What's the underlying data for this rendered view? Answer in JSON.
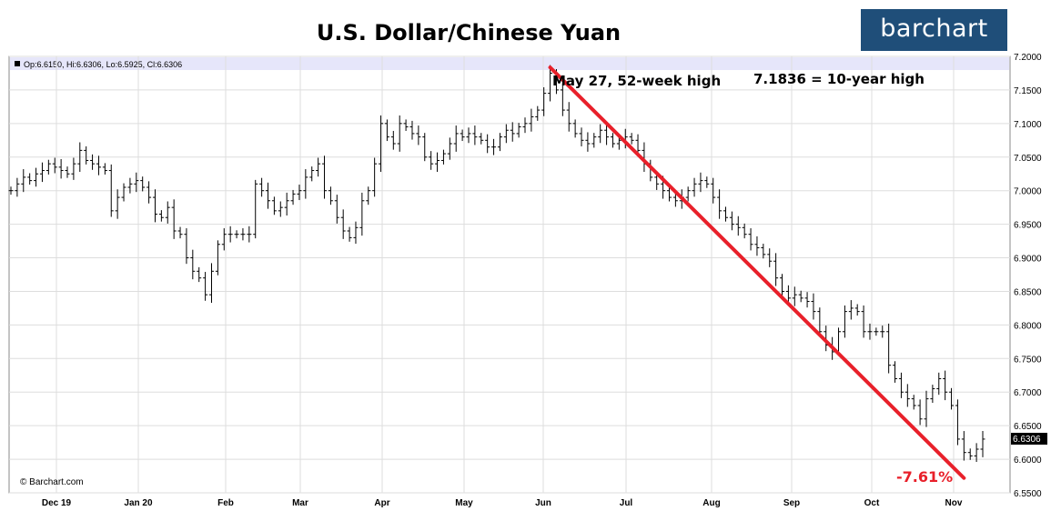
{
  "header": {
    "title": "U.S. Dollar/Chinese Yuan",
    "logo_text": "barchart",
    "brand_color": "#1f4e79"
  },
  "ohlc_summary": "Op:6.6150, Hi:6.6306, Lo:6.5925, Cl:6.6306",
  "copyright": "© Barchart.com",
  "annotations": {
    "high_label": "May 27, 52-week high",
    "ten_year_label": "7.1836 = 10-year high",
    "change_label": "-7.61%",
    "change_color": "#e8202a"
  },
  "last_price_label": "6.6306",
  "chart_data": {
    "type": "ohlc-bar",
    "title": "U.S. Dollar/Chinese Yuan",
    "xlabel": "",
    "ylabel": "",
    "ylim": [
      6.55,
      7.2
    ],
    "y_ticks": [
      "7.2000",
      "7.1500",
      "7.1000",
      "7.0500",
      "7.0000",
      "6.9500",
      "6.9000",
      "6.8500",
      "6.8000",
      "6.7500",
      "6.7000",
      "6.6500",
      "6.6000",
      "6.5500"
    ],
    "x_ticks": [
      "Dec 19",
      "Jan 20",
      "Feb",
      "Mar",
      "Apr",
      "May",
      "Jun",
      "Jul",
      "Aug",
      "Sep",
      "Oct",
      "Nov"
    ],
    "grid": true,
    "legend": "none",
    "series": [
      {
        "points": [
          [
            0,
            7.0
          ],
          [
            1,
            7.01
          ],
          [
            2,
            7.02
          ],
          [
            3,
            7.015
          ],
          [
            4,
            7.025
          ],
          [
            5,
            7.03
          ],
          [
            6,
            7.04
          ],
          [
            7,
            7.035
          ],
          [
            8,
            7.03
          ],
          [
            9,
            7.025
          ],
          [
            10,
            7.04
          ],
          [
            11,
            7.06
          ],
          [
            12,
            7.045
          ],
          [
            13,
            7.04
          ],
          [
            14,
            7.035
          ],
          [
            15,
            7.03
          ],
          [
            16,
            6.97
          ],
          [
            17,
            6.99
          ],
          [
            18,
            7.005
          ],
          [
            19,
            7.01
          ],
          [
            20,
            7.015
          ],
          [
            21,
            7.005
          ],
          [
            22,
            6.99
          ],
          [
            23,
            6.965
          ],
          [
            24,
            6.96
          ],
          [
            25,
            6.975
          ],
          [
            26,
            6.94
          ],
          [
            27,
            6.935
          ],
          [
            28,
            6.9
          ],
          [
            29,
            6.88
          ],
          [
            30,
            6.87
          ],
          [
            31,
            6.845
          ],
          [
            32,
            6.88
          ],
          [
            33,
            6.92
          ],
          [
            34,
            6.935
          ],
          [
            35,
            6.935
          ],
          [
            36,
            6.935
          ],
          [
            37,
            6.935
          ],
          [
            38,
            6.935
          ],
          [
            39,
            7.01
          ],
          [
            40,
            7.0
          ],
          [
            41,
            6.985
          ],
          [
            42,
            6.97
          ],
          [
            43,
            6.975
          ],
          [
            44,
            6.985
          ],
          [
            45,
            6.995
          ],
          [
            46,
            7.0
          ],
          [
            47,
            7.02
          ],
          [
            48,
            7.03
          ],
          [
            49,
            7.04
          ],
          [
            50,
            7.0
          ],
          [
            51,
            6.985
          ],
          [
            52,
            6.96
          ],
          [
            53,
            6.94
          ],
          [
            54,
            6.93
          ],
          [
            55,
            6.945
          ],
          [
            56,
            6.985
          ],
          [
            57,
            7.0
          ],
          [
            58,
            7.04
          ],
          [
            59,
            7.1
          ],
          [
            60,
            7.08
          ],
          [
            61,
            7.07
          ],
          [
            62,
            7.1
          ],
          [
            63,
            7.095
          ],
          [
            64,
            7.085
          ],
          [
            65,
            7.08
          ],
          [
            66,
            7.05
          ],
          [
            67,
            7.04
          ],
          [
            68,
            7.045
          ],
          [
            69,
            7.055
          ],
          [
            70,
            7.07
          ],
          [
            71,
            7.085
          ],
          [
            72,
            7.08
          ],
          [
            73,
            7.085
          ],
          [
            74,
            7.08
          ],
          [
            75,
            7.075
          ],
          [
            76,
            7.065
          ],
          [
            77,
            7.065
          ],
          [
            78,
            7.08
          ],
          [
            79,
            7.09
          ],
          [
            80,
            7.085
          ],
          [
            81,
            7.095
          ],
          [
            82,
            7.1
          ],
          [
            83,
            7.11
          ],
          [
            84,
            7.12
          ],
          [
            85,
            7.145
          ],
          [
            86,
            7.175
          ],
          [
            87,
            7.15
          ],
          [
            88,
            7.12
          ],
          [
            89,
            7.1
          ],
          [
            90,
            7.085
          ],
          [
            91,
            7.075
          ],
          [
            92,
            7.07
          ],
          [
            93,
            7.08
          ],
          [
            94,
            7.09
          ],
          [
            95,
            7.08
          ],
          [
            96,
            7.07
          ],
          [
            97,
            7.075
          ],
          [
            98,
            7.08
          ],
          [
            99,
            7.075
          ],
          [
            100,
            7.06
          ],
          [
            101,
            7.04
          ],
          [
            102,
            7.02
          ],
          [
            103,
            7.01
          ],
          [
            104,
            7.0
          ],
          [
            105,
            6.99
          ],
          [
            106,
            6.985
          ],
          [
            107,
            6.99
          ],
          [
            108,
            7.0
          ],
          [
            109,
            7.01
          ],
          [
            110,
            7.015
          ],
          [
            111,
            7.01
          ],
          [
            112,
            6.99
          ],
          [
            113,
            6.97
          ],
          [
            114,
            6.96
          ],
          [
            115,
            6.95
          ],
          [
            116,
            6.945
          ],
          [
            117,
            6.935
          ],
          [
            118,
            6.92
          ],
          [
            119,
            6.915
          ],
          [
            120,
            6.905
          ],
          [
            121,
            6.895
          ],
          [
            122,
            6.87
          ],
          [
            123,
            6.85
          ],
          [
            124,
            6.84
          ],
          [
            125,
            6.845
          ],
          [
            126,
            6.84
          ],
          [
            127,
            6.835
          ],
          [
            128,
            6.82
          ],
          [
            129,
            6.79
          ],
          [
            130,
            6.77
          ],
          [
            131,
            6.76
          ],
          [
            132,
            6.79
          ],
          [
            133,
            6.82
          ],
          [
            134,
            6.825
          ],
          [
            135,
            6.82
          ],
          [
            136,
            6.79
          ],
          [
            137,
            6.79
          ],
          [
            138,
            6.79
          ],
          [
            139,
            6.79
          ],
          [
            140,
            6.74
          ],
          [
            141,
            6.72
          ],
          [
            142,
            6.7
          ],
          [
            143,
            6.69
          ],
          [
            144,
            6.68
          ],
          [
            145,
            6.66
          ],
          [
            146,
            6.69
          ],
          [
            147,
            6.705
          ],
          [
            148,
            6.72
          ],
          [
            149,
            6.7
          ],
          [
            150,
            6.68
          ],
          [
            151,
            6.63
          ],
          [
            152,
            6.61
          ],
          [
            153,
            6.605
          ],
          [
            154,
            6.615
          ],
          [
            155,
            6.63
          ]
        ]
      }
    ],
    "trendline": {
      "from": [
        86,
        7.1836
      ],
      "to": [
        152,
        6.572
      ],
      "color": "#e8202a"
    }
  }
}
